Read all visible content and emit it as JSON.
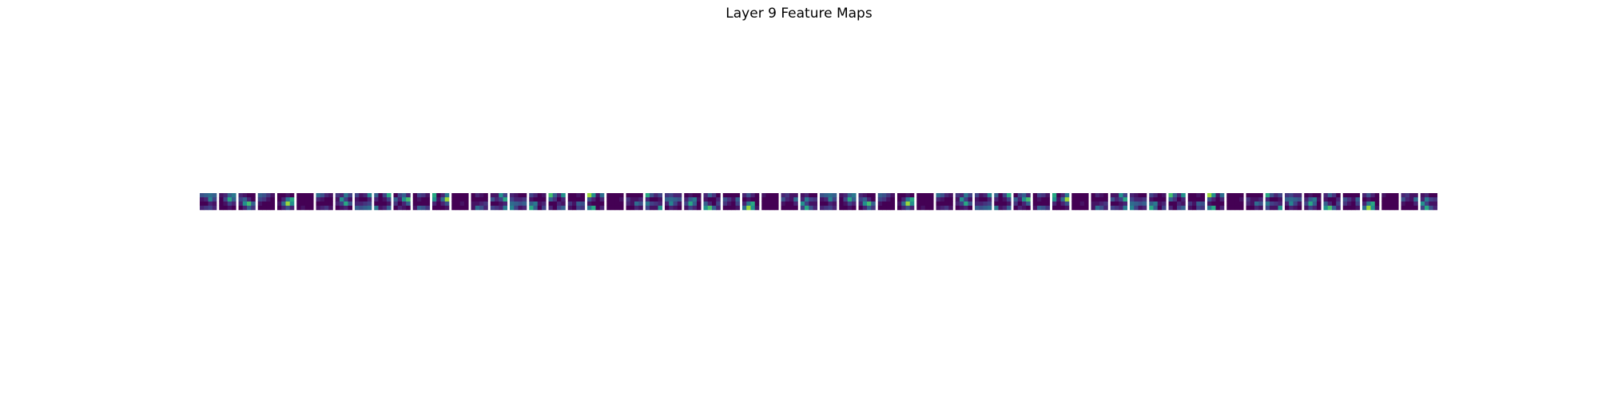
{
  "figure": {
    "title": "Layer 9 Feature Maps"
  },
  "colormap": {
    "name": "viridis",
    "stops": [
      "#440154",
      "#482878",
      "#3e4989",
      "#31688e",
      "#26828e",
      "#1f9e89",
      "#35b779",
      "#6ece58",
      "#b5de2b",
      "#fde725"
    ]
  },
  "chart_data": {
    "type": "heatmap",
    "title": "Layer 9 Feature Maps",
    "layout": "single row of small heatmap panels, axes hidden",
    "panel_count": 64,
    "panel_grid": [
      4,
      4
    ],
    "value_range": [
      0,
      1
    ],
    "patterns": [
      [
        [
          0.25,
          0.3,
          0.35,
          0.3
        ],
        [
          0.05,
          0.1,
          0.45,
          0.2
        ],
        [
          0.0,
          0.0,
          0.1,
          0.05
        ],
        [
          0.1,
          0.15,
          0.2,
          0.1
        ]
      ],
      [
        [
          0.05,
          0.1,
          0.3,
          0.4
        ],
        [
          0.0,
          0.2,
          0.6,
          0.3
        ],
        [
          0.0,
          0.05,
          0.2,
          0.1
        ],
        [
          0.0,
          0.0,
          0.05,
          0.0
        ]
      ],
      [
        [
          0.1,
          0.05,
          0.0,
          0.0
        ],
        [
          0.2,
          0.3,
          0.1,
          0.0
        ],
        [
          0.1,
          0.5,
          0.7,
          0.3
        ],
        [
          0.0,
          0.1,
          0.3,
          0.15
        ]
      ],
      [
        [
          0.3,
          0.25,
          0.15,
          0.05
        ],
        [
          0.2,
          0.15,
          0.05,
          0.0
        ],
        [
          0.05,
          0.0,
          0.0,
          0.0
        ],
        [
          0.0,
          0.0,
          0.0,
          0.0
        ]
      ],
      [
        [
          0.0,
          0.0,
          0.05,
          0.0
        ],
        [
          0.0,
          0.1,
          0.4,
          0.6
        ],
        [
          0.05,
          0.35,
          0.85,
          0.5
        ],
        [
          0.0,
          0.1,
          0.25,
          0.1
        ]
      ],
      [
        [
          0.0,
          0.0,
          0.0,
          0.0
        ],
        [
          0.0,
          0.0,
          0.0,
          0.0
        ],
        [
          0.0,
          0.0,
          0.0,
          0.0
        ],
        [
          0.0,
          0.05,
          0.0,
          0.0
        ]
      ],
      [
        [
          0.35,
          0.25,
          0.1,
          0.05
        ],
        [
          0.1,
          0.05,
          0.0,
          0.0
        ],
        [
          0.0,
          0.0,
          0.0,
          0.0
        ],
        [
          0.05,
          0.1,
          0.15,
          0.05
        ]
      ],
      [
        [
          0.15,
          0.1,
          0.4,
          0.2
        ],
        [
          0.05,
          0.5,
          0.2,
          0.05
        ],
        [
          0.1,
          0.2,
          0.6,
          0.25
        ],
        [
          0.0,
          0.05,
          0.1,
          0.0
        ]
      ]
    ]
  }
}
